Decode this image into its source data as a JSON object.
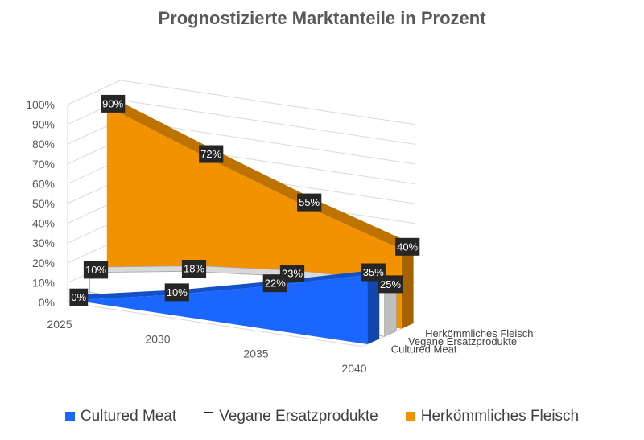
{
  "chart_data": {
    "type": "area",
    "variant": "3d-area",
    "title": "Prognostizierte Marktanteile in Prozent",
    "x": [
      "2025",
      "2030",
      "2035",
      "2040"
    ],
    "y_ticks": [
      "0%",
      "10%",
      "20%",
      "30%",
      "40%",
      "50%",
      "60%",
      "70%",
      "80%",
      "90%",
      "100%"
    ],
    "ylim": [
      0,
      100
    ],
    "grid": true,
    "legend_position": "bottom",
    "series": [
      {
        "name": "Cultured Meat",
        "color": "#1a66ff",
        "values": [
          0,
          10,
          22,
          35
        ],
        "labels": [
          "0%",
          "10%",
          "22%",
          "35%"
        ]
      },
      {
        "name": "Vegane Ersatzprodukte",
        "color": "#ffffff",
        "values": [
          10,
          18,
          23,
          25
        ],
        "labels": [
          "10%",
          "18%",
          "23%",
          "25%"
        ]
      },
      {
        "name": "Herkömmliches Fleisch",
        "color": "#f39200",
        "values": [
          90,
          72,
          55,
          40
        ],
        "labels": [
          "90%",
          "72%",
          "55%",
          "40%"
        ]
      }
    ]
  }
}
